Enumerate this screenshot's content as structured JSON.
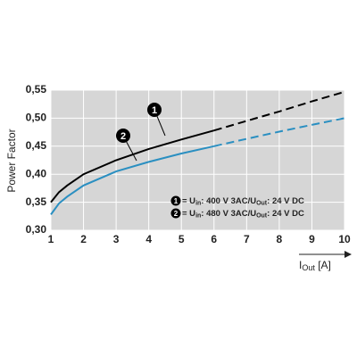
{
  "chart_data": {
    "type": "line",
    "y_label": "Power Factor",
    "x_label": [
      "I",
      "Out",
      " [A]"
    ],
    "x": [
      1,
      1.25,
      1.5,
      2,
      3,
      4,
      5,
      6,
      7,
      8,
      9,
      10
    ],
    "series": [
      {
        "name": "1",
        "color": "#000000",
        "legend": [
          "= U",
          "in",
          ": 400 V 3AC/U",
          "Out",
          ": 24 V DC"
        ],
        "values": [
          0.35,
          0.368,
          0.38,
          0.4,
          0.425,
          0.445,
          0.462,
          0.478,
          0.495,
          0.512,
          0.53,
          0.547
        ]
      },
      {
        "name": "2",
        "color": "#2a8fc1",
        "legend": [
          "= U",
          "in",
          ": 480 V 3AC/U",
          "Out",
          ": 24 V DC"
        ],
        "values": [
          0.328,
          0.348,
          0.36,
          0.38,
          0.405,
          0.422,
          0.437,
          0.45,
          0.463,
          0.476,
          0.488,
          0.5
        ]
      }
    ],
    "dashed_from_x": 6,
    "xlim": [
      1,
      10
    ],
    "xticks": [
      1,
      2,
      3,
      4,
      5,
      6,
      7,
      8,
      9,
      10
    ],
    "ylim": [
      0.3,
      0.55
    ],
    "yticks": [
      {
        "value": 0.3,
        "label": "0,30"
      },
      {
        "value": 0.35,
        "label": "0,35"
      },
      {
        "value": 0.4,
        "label": "0,40"
      },
      {
        "value": 0.45,
        "label": "0,45"
      },
      {
        "value": 0.5,
        "label": "0,50"
      },
      {
        "value": 0.55,
        "label": "0,55"
      }
    ],
    "grid": true
  }
}
